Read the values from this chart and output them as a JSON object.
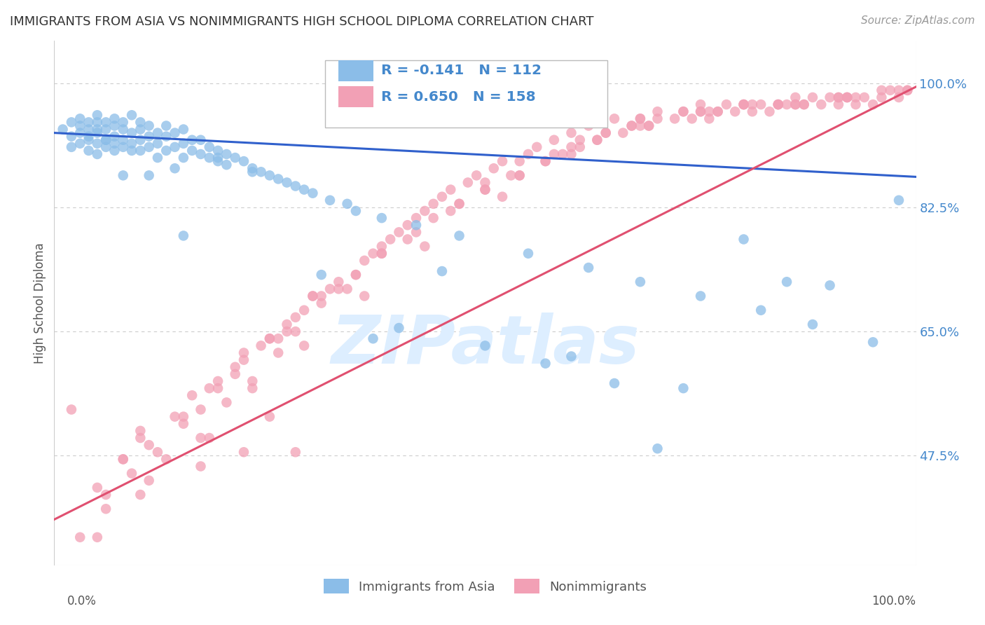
{
  "title": "IMMIGRANTS FROM ASIA VS NONIMMIGRANTS HIGH SCHOOL DIPLOMA CORRELATION CHART",
  "source": "Source: ZipAtlas.com",
  "ylabel": "High School Diploma",
  "yticks": [
    0.475,
    0.65,
    0.825,
    1.0
  ],
  "ytick_labels": [
    "47.5%",
    "65.0%",
    "82.5%",
    "100.0%"
  ],
  "xlim": [
    0.0,
    1.0
  ],
  "ylim": [
    0.32,
    1.06
  ],
  "legend_blue_R": "-0.141",
  "legend_blue_N": "112",
  "legend_pink_R": "0.650",
  "legend_pink_N": "158",
  "blue_color": "#8BBDE8",
  "pink_color": "#F2A0B5",
  "blue_line_color": "#3060CC",
  "pink_line_color": "#E05070",
  "grid_color": "#CCCCCC",
  "tick_label_color": "#4488CC",
  "title_color": "#333333",
  "source_color": "#999999",
  "watermark_text": "ZIPatlas",
  "watermark_color": "#DDEEFF",
  "blue_trend_x": [
    0.0,
    1.0
  ],
  "blue_trend_y": [
    0.93,
    0.868
  ],
  "pink_trend_x": [
    0.0,
    1.0
  ],
  "pink_trend_y": [
    0.385,
    0.995
  ],
  "blue_x": [
    0.01,
    0.02,
    0.02,
    0.02,
    0.03,
    0.03,
    0.03,
    0.03,
    0.04,
    0.04,
    0.04,
    0.04,
    0.04,
    0.05,
    0.05,
    0.05,
    0.05,
    0.05,
    0.05,
    0.06,
    0.06,
    0.06,
    0.06,
    0.07,
    0.07,
    0.07,
    0.07,
    0.07,
    0.08,
    0.08,
    0.08,
    0.08,
    0.09,
    0.09,
    0.09,
    0.09,
    0.1,
    0.1,
    0.1,
    0.1,
    0.11,
    0.11,
    0.11,
    0.12,
    0.12,
    0.12,
    0.13,
    0.13,
    0.13,
    0.14,
    0.14,
    0.15,
    0.15,
    0.15,
    0.16,
    0.16,
    0.17,
    0.17,
    0.18,
    0.18,
    0.19,
    0.19,
    0.2,
    0.2,
    0.21,
    0.22,
    0.23,
    0.24,
    0.25,
    0.26,
    0.27,
    0.28,
    0.3,
    0.32,
    0.35,
    0.38,
    0.42,
    0.47,
    0.55,
    0.62,
    0.68,
    0.75,
    0.82,
    0.88,
    0.19,
    0.29,
    0.34,
    0.23,
    0.14,
    0.08,
    0.06,
    0.11,
    0.15,
    0.31,
    0.4,
    0.5,
    0.57,
    0.65,
    0.73,
    0.8,
    0.9,
    0.95,
    0.98,
    0.6,
    0.7,
    0.85,
    0.45,
    0.37
  ],
  "blue_y": [
    0.935,
    0.925,
    0.945,
    0.91,
    0.93,
    0.95,
    0.915,
    0.94,
    0.92,
    0.935,
    0.905,
    0.945,
    0.925,
    0.93,
    0.915,
    0.945,
    0.955,
    0.9,
    0.935,
    0.92,
    0.935,
    0.91,
    0.945,
    0.925,
    0.94,
    0.905,
    0.95,
    0.915,
    0.92,
    0.935,
    0.91,
    0.945,
    0.915,
    0.93,
    0.955,
    0.905,
    0.92,
    0.935,
    0.905,
    0.945,
    0.91,
    0.925,
    0.94,
    0.915,
    0.93,
    0.895,
    0.905,
    0.925,
    0.94,
    0.91,
    0.93,
    0.895,
    0.915,
    0.935,
    0.905,
    0.92,
    0.9,
    0.92,
    0.895,
    0.91,
    0.89,
    0.905,
    0.9,
    0.885,
    0.895,
    0.89,
    0.88,
    0.875,
    0.87,
    0.865,
    0.86,
    0.855,
    0.845,
    0.835,
    0.82,
    0.81,
    0.8,
    0.785,
    0.76,
    0.74,
    0.72,
    0.7,
    0.68,
    0.66,
    0.895,
    0.85,
    0.83,
    0.875,
    0.88,
    0.87,
    0.92,
    0.87,
    0.785,
    0.73,
    0.655,
    0.63,
    0.605,
    0.577,
    0.57,
    0.78,
    0.715,
    0.635,
    0.835,
    0.615,
    0.485,
    0.72,
    0.735,
    0.64
  ],
  "pink_x": [
    0.02,
    0.05,
    0.06,
    0.08,
    0.09,
    0.1,
    0.11,
    0.13,
    0.15,
    0.16,
    0.17,
    0.18,
    0.19,
    0.2,
    0.21,
    0.22,
    0.23,
    0.24,
    0.25,
    0.26,
    0.27,
    0.28,
    0.29,
    0.3,
    0.31,
    0.32,
    0.33,
    0.35,
    0.36,
    0.37,
    0.38,
    0.39,
    0.4,
    0.41,
    0.42,
    0.43,
    0.44,
    0.45,
    0.46,
    0.47,
    0.48,
    0.49,
    0.5,
    0.51,
    0.52,
    0.53,
    0.54,
    0.55,
    0.56,
    0.57,
    0.58,
    0.59,
    0.6,
    0.61,
    0.62,
    0.63,
    0.64,
    0.65,
    0.66,
    0.67,
    0.68,
    0.69,
    0.7,
    0.72,
    0.73,
    0.74,
    0.75,
    0.76,
    0.77,
    0.78,
    0.79,
    0.8,
    0.81,
    0.82,
    0.83,
    0.84,
    0.85,
    0.86,
    0.87,
    0.88,
    0.89,
    0.9,
    0.91,
    0.92,
    0.93,
    0.94,
    0.95,
    0.96,
    0.97,
    0.98,
    0.99,
    0.3,
    0.38,
    0.44,
    0.5,
    0.58,
    0.64,
    0.7,
    0.75,
    0.8,
    0.86,
    0.91,
    0.96,
    0.15,
    0.22,
    0.28,
    0.35,
    0.42,
    0.5,
    0.57,
    0.63,
    0.69,
    0.75,
    0.81,
    0.87,
    0.93,
    0.99,
    0.1,
    0.18,
    0.26,
    0.34,
    0.19,
    0.27,
    0.33,
    0.41,
    0.47,
    0.54,
    0.6,
    0.67,
    0.73,
    0.8,
    0.86,
    0.92,
    0.98,
    0.08,
    0.14,
    0.21,
    0.38,
    0.46,
    0.54,
    0.61,
    0.68,
    0.76,
    0.84,
    0.91,
    0.06,
    0.12,
    0.25,
    0.31,
    0.05,
    0.11,
    0.17,
    0.23,
    0.29,
    0.36,
    0.43,
    0.52,
    0.6,
    0.68,
    0.77,
    0.84,
    0.92
  ],
  "pink_y": [
    0.54,
    0.43,
    0.4,
    0.47,
    0.45,
    0.51,
    0.49,
    0.47,
    0.52,
    0.56,
    0.54,
    0.5,
    0.57,
    0.55,
    0.59,
    0.61,
    0.58,
    0.63,
    0.64,
    0.62,
    0.66,
    0.65,
    0.68,
    0.7,
    0.69,
    0.71,
    0.72,
    0.73,
    0.75,
    0.76,
    0.77,
    0.78,
    0.79,
    0.8,
    0.81,
    0.82,
    0.83,
    0.84,
    0.85,
    0.83,
    0.86,
    0.87,
    0.85,
    0.88,
    0.89,
    0.87,
    0.89,
    0.9,
    0.91,
    0.89,
    0.92,
    0.9,
    0.93,
    0.91,
    0.94,
    0.92,
    0.93,
    0.95,
    0.93,
    0.94,
    0.95,
    0.94,
    0.96,
    0.95,
    0.96,
    0.95,
    0.97,
    0.95,
    0.96,
    0.97,
    0.96,
    0.97,
    0.96,
    0.97,
    0.96,
    0.97,
    0.97,
    0.98,
    0.97,
    0.98,
    0.97,
    0.98,
    0.97,
    0.98,
    0.97,
    0.98,
    0.97,
    0.98,
    0.99,
    0.98,
    0.99,
    0.7,
    0.76,
    0.81,
    0.86,
    0.9,
    0.93,
    0.95,
    0.96,
    0.97,
    0.97,
    0.98,
    0.99,
    0.53,
    0.62,
    0.67,
    0.73,
    0.79,
    0.85,
    0.89,
    0.92,
    0.94,
    0.96,
    0.97,
    0.97,
    0.98,
    0.99,
    0.5,
    0.57,
    0.64,
    0.71,
    0.58,
    0.65,
    0.71,
    0.78,
    0.83,
    0.87,
    0.91,
    0.94,
    0.96,
    0.97,
    0.97,
    0.98,
    0.99,
    0.47,
    0.53,
    0.6,
    0.76,
    0.82,
    0.87,
    0.92,
    0.95,
    0.96,
    0.97,
    0.98,
    0.42,
    0.48,
    0.64,
    0.7,
    0.36,
    0.44,
    0.5,
    0.57,
    0.63,
    0.7,
    0.77,
    0.84,
    0.9,
    0.94,
    0.96,
    0.97,
    0.98
  ],
  "pink_outlier_low_x": [
    0.03,
    0.1,
    0.17,
    0.22,
    0.25,
    0.28
  ],
  "pink_outlier_low_y": [
    0.36,
    0.42,
    0.46,
    0.48,
    0.53,
    0.48
  ]
}
